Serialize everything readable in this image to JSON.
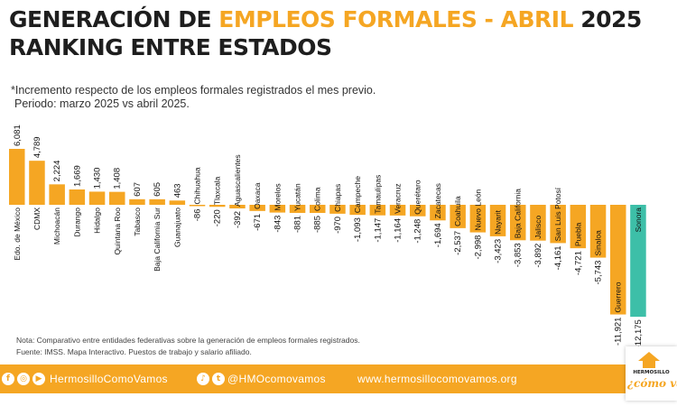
{
  "header": {
    "title_part1": "GENERACIÓN DE ",
    "title_part2": "EMPLEOS FORMALES",
    "title_part3": " - ",
    "title_part4": "ABRIL",
    "title_part5": " 2025",
    "title_line2": "RANKING ENTRE ESTADOS",
    "subtitle_line1": "*Incremento respecto de los empleos formales registrados el mes previo.",
    "subtitle_line2": "Periodo: marzo 2025 vs abril 2025."
  },
  "colors": {
    "accent": "#f5a623",
    "highlight": "#3dbfa8",
    "title": "#1e1e1e"
  },
  "chart_data": {
    "type": "bar",
    "categories": [
      "Edo. de México",
      "CDMX",
      "Michoacán",
      "Durango",
      "Hidalgo",
      "Quintana Roo",
      "Tabasco",
      "Baja California Sur",
      "Guanajuato",
      "Chihuahua",
      "Tlaxcala",
      "Aguascalientes",
      "Oaxaca",
      "Morelos",
      "Yucatán",
      "Colima",
      "Chiapas",
      "Campeche",
      "Tamaulipas",
      "Veracruz",
      "Querétaro",
      "Zacatecas",
      "Coahuila",
      "Nuevo León",
      "Nayarit",
      "Baja California",
      "Jalisco",
      "San Luis Potosí",
      "Puebla",
      "Sinaloa",
      "Guerrero",
      "Sonora"
    ],
    "values": [
      6081,
      4789,
      2224,
      1669,
      1430,
      1408,
      607,
      605,
      463,
      -86,
      -220,
      -392,
      -671,
      -843,
      -881,
      -885,
      -970,
      -1093,
      -1147,
      -1164,
      -1248,
      -1694,
      -2537,
      -2998,
      -3423,
      -3853,
      -3892,
      -4161,
      -4721,
      -5743,
      -11921,
      -12175
    ],
    "value_labels": [
      "6,081",
      "4,789",
      "2,224",
      "1,669",
      "1,430",
      "1,408",
      "607",
      "605",
      "463",
      "-86",
      "-220",
      "-392",
      "-671",
      "-843",
      "-881",
      "-885",
      "-970",
      "-1,093",
      "-1,147",
      "-1,164",
      "-1,248",
      "-1,694",
      "-2,537",
      "-2,998",
      "-3,423",
      "-3,853",
      "-3,892",
      "-4,161",
      "-4,721",
      "-5,743",
      "-11,921",
      "-12,175"
    ],
    "highlight_category": "Sonora",
    "legend": "none",
    "grid": false
  },
  "notes": {
    "note": "Nota: Comparativo entre entidades federativas sobre la generación de empleos formales registrados.",
    "source": "Fuente: IMSS. Mapa Interactivo. Puestos de trabajo y salario afiliado."
  },
  "footer": {
    "handle_facebook": "HermosilloComoVamos",
    "handle_social": "@HMOcomovamos",
    "website": "www.hermosillocomovamos.org",
    "icons_left": [
      "facebook-icon",
      "instagram-icon",
      "youtube-icon"
    ],
    "icons_mid": [
      "tiktok-icon",
      "twitter-icon"
    ]
  },
  "logo": {
    "top": "HERMOSILLO",
    "bottom": "¿cómo vamos"
  }
}
